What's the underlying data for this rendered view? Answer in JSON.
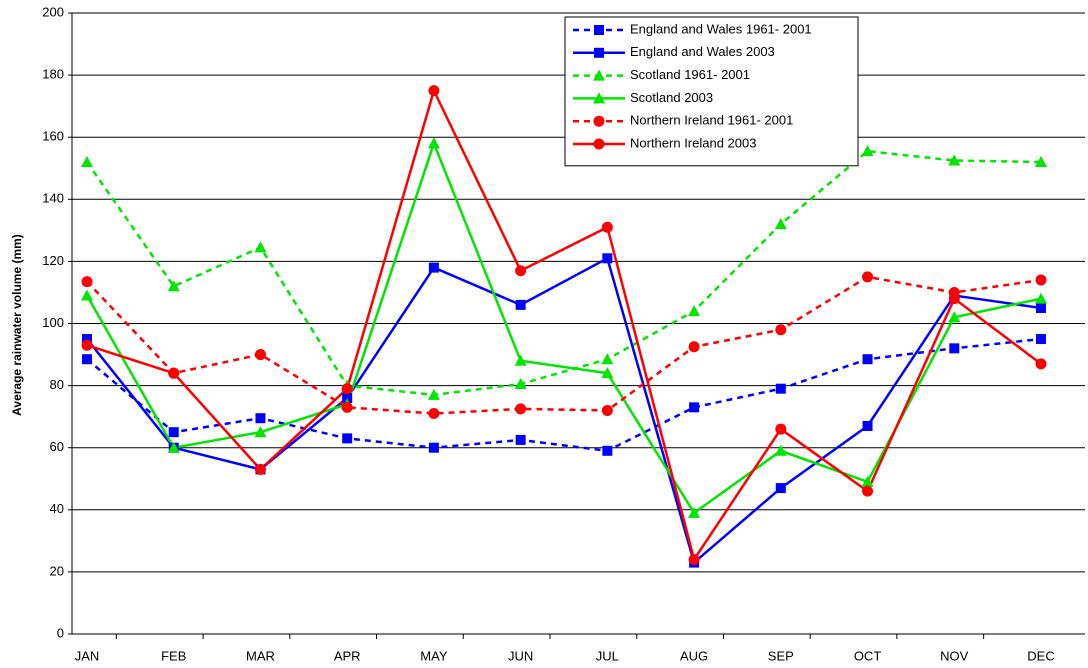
{
  "chart_data": {
    "type": "line",
    "y_label": "Average rainwater volume (mm)",
    "categories": [
      "JAN",
      "FEB",
      "MAR",
      "APR",
      "MAY",
      "JUN",
      "JUL",
      "AUG",
      "SEP",
      "OCT",
      "NOV",
      "DEC"
    ],
    "ylim": [
      0,
      200
    ],
    "yticks": [
      0,
      20,
      40,
      60,
      80,
      100,
      120,
      140,
      160,
      180,
      200
    ],
    "grid": true,
    "legend": "top-right",
    "series": [
      {
        "name": "England and Wales 1961- 2001",
        "color": "#0000ff",
        "style": "dashed",
        "marker": "square",
        "values": [
          88.5,
          65,
          69.5,
          63,
          60,
          62.5,
          59,
          73,
          79,
          88.5,
          92,
          95
        ]
      },
      {
        "name": "England and Wales 2003",
        "color": "#0000ff",
        "style": "solid",
        "marker": "square",
        "values": [
          95,
          60,
          53,
          76,
          118,
          106,
          121,
          23,
          47,
          67,
          109,
          105
        ]
      },
      {
        "name": "Scotland 1961- 2001",
        "color": "#00e600",
        "style": "dashed",
        "marker": "triangle",
        "values": [
          152,
          112,
          124.5,
          80,
          77,
          80.5,
          88.5,
          104,
          132,
          155.5,
          152.5,
          152
        ]
      },
      {
        "name": "Scotland 2003",
        "color": "#00e600",
        "style": "solid",
        "marker": "triangle",
        "values": [
          109,
          60,
          65,
          74,
          158,
          88,
          84,
          39,
          59,
          49,
          102,
          108
        ]
      },
      {
        "name": "Northern Ireland 1961- 2001",
        "color": "#ff0000",
        "style": "dashed",
        "marker": "circle",
        "values": [
          113.5,
          84,
          90,
          73,
          71,
          72.5,
          72,
          92.5,
          98,
          115,
          110,
          114
        ]
      },
      {
        "name": "Northern Ireland 2003",
        "color": "#ff0000",
        "style": "solid",
        "marker": "circle",
        "values": [
          93,
          84,
          53,
          79,
          175,
          117,
          131,
          24,
          66,
          46,
          108,
          87
        ]
      }
    ]
  }
}
